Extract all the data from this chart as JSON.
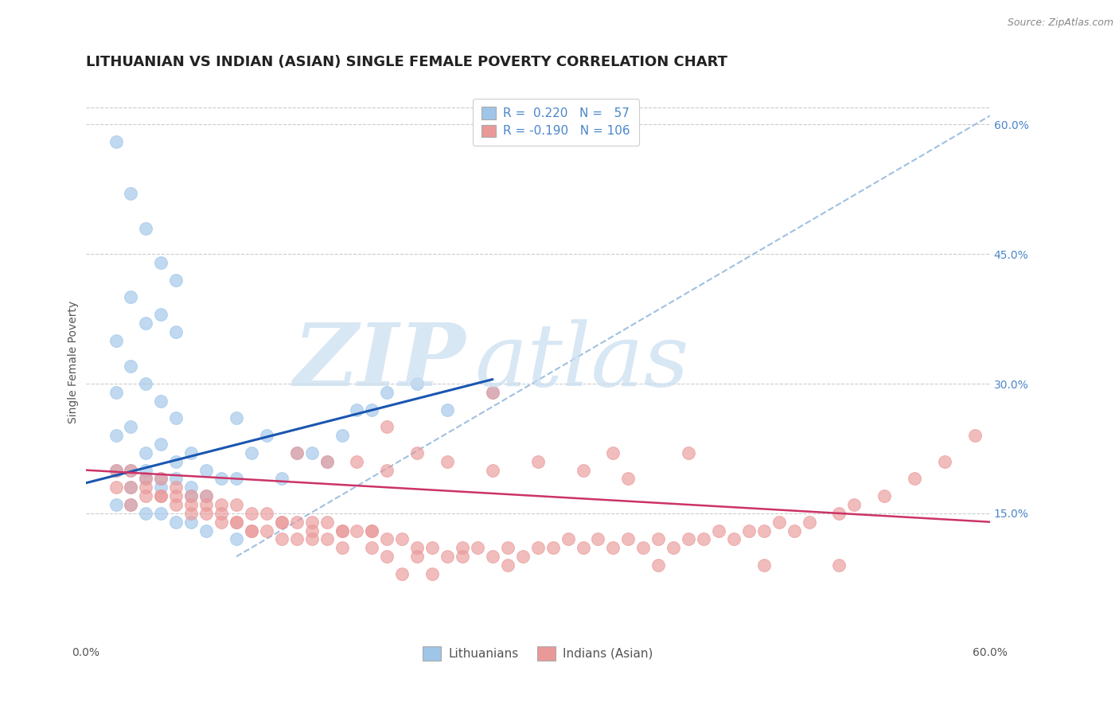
{
  "title": "LITHUANIAN VS INDIAN (ASIAN) SINGLE FEMALE POVERTY CORRELATION CHART",
  "source": "Source: ZipAtlas.com",
  "ylabel": "Single Female Poverty",
  "xlim": [
    0.0,
    0.6
  ],
  "ylim": [
    0.0,
    0.65
  ],
  "y_tick_labels_right": [
    "15.0%",
    "30.0%",
    "45.0%",
    "60.0%"
  ],
  "y_tick_positions_right": [
    0.15,
    0.3,
    0.45,
    0.6
  ],
  "blue_color": "#9fc5e8",
  "pink_color": "#ea9999",
  "blue_line_color": "#1a56b0",
  "pink_line_color": "#cc3366",
  "dash_line_color": "#a0c0e0",
  "grid_color": "#cccccc",
  "title_fontsize": 13,
  "label_fontsize": 10,
  "tick_fontsize": 10,
  "blue_scatter_x": [
    0.02,
    0.03,
    0.04,
    0.05,
    0.06,
    0.02,
    0.03,
    0.04,
    0.05,
    0.06,
    0.02,
    0.03,
    0.04,
    0.05,
    0.06,
    0.02,
    0.03,
    0.04,
    0.05,
    0.06,
    0.02,
    0.03,
    0.04,
    0.05,
    0.03,
    0.04,
    0.05,
    0.06,
    0.07,
    0.07,
    0.07,
    0.08,
    0.08,
    0.09,
    0.1,
    0.1,
    0.11,
    0.12,
    0.13,
    0.14,
    0.15,
    0.16,
    0.17,
    0.18,
    0.19,
    0.2,
    0.22,
    0.24,
    0.27,
    0.02,
    0.03,
    0.04,
    0.05,
    0.06,
    0.07,
    0.08,
    0.1
  ],
  "blue_scatter_y": [
    0.58,
    0.52,
    0.48,
    0.44,
    0.42,
    0.35,
    0.4,
    0.37,
    0.38,
    0.36,
    0.29,
    0.32,
    0.3,
    0.28,
    0.26,
    0.24,
    0.25,
    0.22,
    0.23,
    0.21,
    0.2,
    0.2,
    0.19,
    0.19,
    0.18,
    0.2,
    0.18,
    0.19,
    0.22,
    0.18,
    0.17,
    0.2,
    0.17,
    0.19,
    0.19,
    0.26,
    0.22,
    0.24,
    0.19,
    0.22,
    0.22,
    0.21,
    0.24,
    0.27,
    0.27,
    0.29,
    0.3,
    0.27,
    0.29,
    0.16,
    0.16,
    0.15,
    0.15,
    0.14,
    0.14,
    0.13,
    0.12
  ],
  "pink_scatter_x": [
    0.02,
    0.02,
    0.03,
    0.03,
    0.03,
    0.04,
    0.04,
    0.05,
    0.05,
    0.06,
    0.06,
    0.07,
    0.07,
    0.08,
    0.08,
    0.09,
    0.09,
    0.1,
    0.1,
    0.11,
    0.11,
    0.12,
    0.12,
    0.13,
    0.13,
    0.14,
    0.14,
    0.15,
    0.15,
    0.16,
    0.16,
    0.17,
    0.17,
    0.18,
    0.19,
    0.19,
    0.2,
    0.2,
    0.21,
    0.22,
    0.22,
    0.23,
    0.24,
    0.25,
    0.25,
    0.26,
    0.27,
    0.28,
    0.29,
    0.3,
    0.31,
    0.32,
    0.33,
    0.34,
    0.35,
    0.36,
    0.37,
    0.38,
    0.39,
    0.4,
    0.41,
    0.42,
    0.43,
    0.44,
    0.45,
    0.46,
    0.47,
    0.48,
    0.5,
    0.51,
    0.53,
    0.55,
    0.57,
    0.59,
    0.04,
    0.05,
    0.06,
    0.07,
    0.08,
    0.09,
    0.1,
    0.11,
    0.13,
    0.15,
    0.17,
    0.19,
    0.14,
    0.16,
    0.18,
    0.2,
    0.22,
    0.24,
    0.27,
    0.3,
    0.33,
    0.36,
    0.27,
    0.2,
    0.35,
    0.4,
    0.28,
    0.38,
    0.45,
    0.5,
    0.21,
    0.23
  ],
  "pink_scatter_y": [
    0.2,
    0.18,
    0.2,
    0.18,
    0.16,
    0.19,
    0.17,
    0.19,
    0.17,
    0.18,
    0.17,
    0.17,
    0.16,
    0.17,
    0.16,
    0.16,
    0.15,
    0.16,
    0.14,
    0.15,
    0.13,
    0.15,
    0.13,
    0.14,
    0.12,
    0.14,
    0.12,
    0.14,
    0.12,
    0.14,
    0.12,
    0.13,
    0.11,
    0.13,
    0.13,
    0.11,
    0.12,
    0.1,
    0.12,
    0.11,
    0.1,
    0.11,
    0.1,
    0.11,
    0.1,
    0.11,
    0.1,
    0.11,
    0.1,
    0.11,
    0.11,
    0.12,
    0.11,
    0.12,
    0.11,
    0.12,
    0.11,
    0.12,
    0.11,
    0.12,
    0.12,
    0.13,
    0.12,
    0.13,
    0.13,
    0.14,
    0.13,
    0.14,
    0.15,
    0.16,
    0.17,
    0.19,
    0.21,
    0.24,
    0.18,
    0.17,
    0.16,
    0.15,
    0.15,
    0.14,
    0.14,
    0.13,
    0.14,
    0.13,
    0.13,
    0.13,
    0.22,
    0.21,
    0.21,
    0.2,
    0.22,
    0.21,
    0.2,
    0.21,
    0.2,
    0.19,
    0.29,
    0.25,
    0.22,
    0.22,
    0.09,
    0.09,
    0.09,
    0.09,
    0.08,
    0.08
  ],
  "blue_line_x": [
    0.0,
    0.27
  ],
  "blue_line_y": [
    0.185,
    0.305
  ],
  "pink_line_x": [
    0.0,
    0.6
  ],
  "pink_line_y": [
    0.2,
    0.14
  ],
  "dash_line_x": [
    0.1,
    0.6
  ],
  "dash_line_y": [
    0.1,
    0.61
  ]
}
